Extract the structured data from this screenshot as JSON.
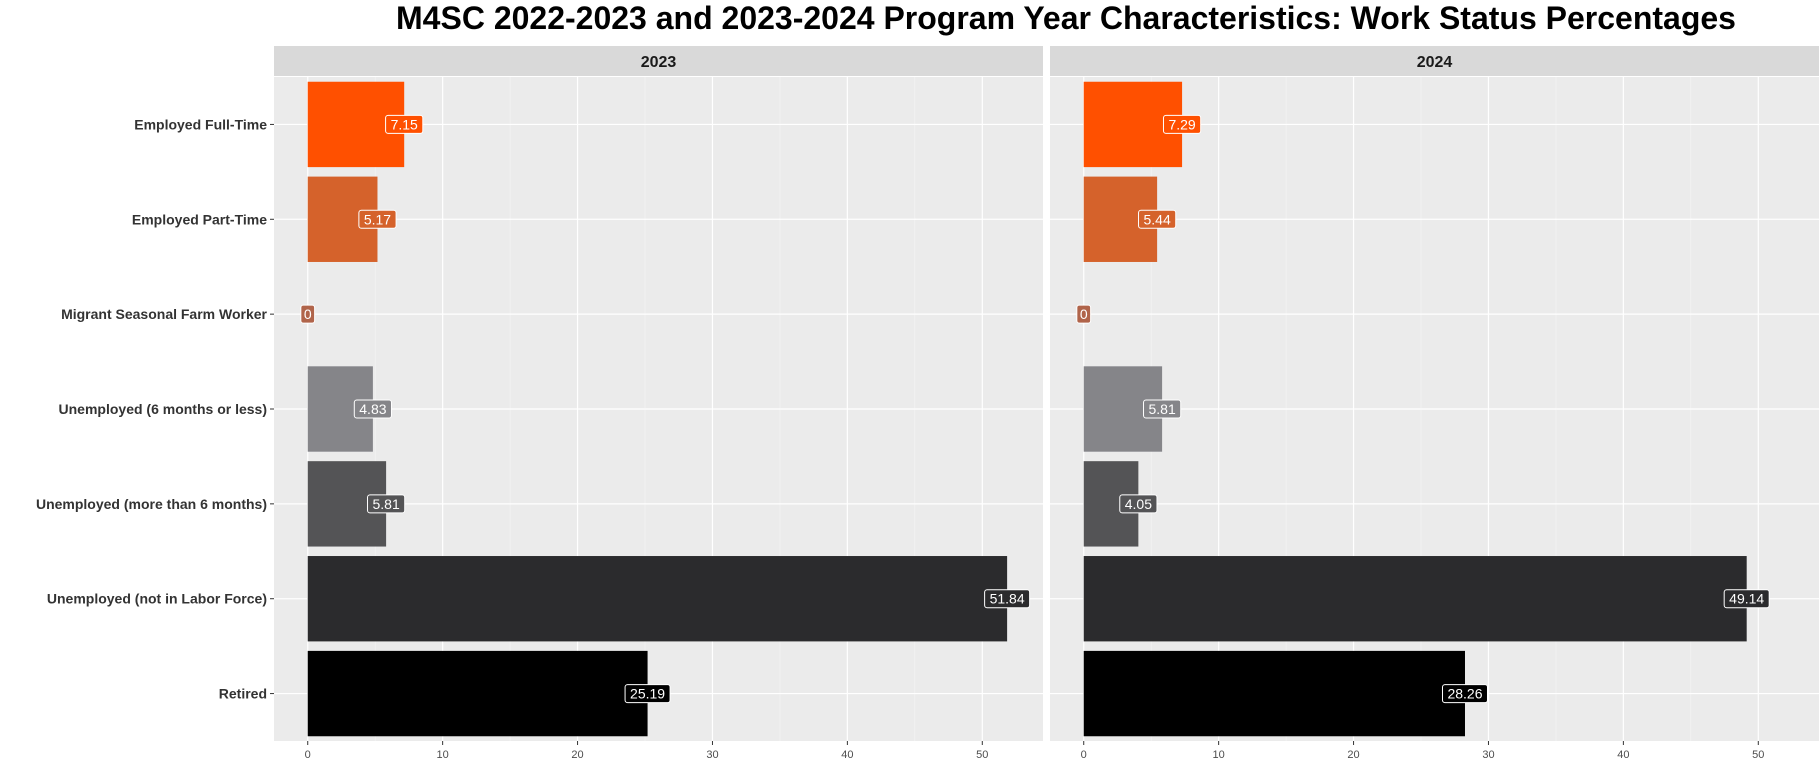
{
  "chart_data": {
    "type": "bar",
    "orientation": "horizontal",
    "title": "M4SC 2022-2023 and 2023-2024 Program Year Characteristics: Work Status Percentages",
    "xlabel": "",
    "ylabel": "",
    "xlim": [
      -2.5,
      54.5
    ],
    "xticks": [
      "0",
      "10",
      "20",
      "30",
      "40",
      "50"
    ],
    "grid": true,
    "legend": "none",
    "categories": [
      "Employed Full-Time",
      "Employed Part-Time",
      "Migrant Seasonal Farm Worker",
      "Unemployed (6 months or less)",
      "Unemployed (more than 6 months)",
      "Unemployed (not in Labor Force)",
      "Retired"
    ],
    "colors": [
      "#ff5000",
      "#d5622b",
      "#b0644a",
      "#858589",
      "#545456",
      "#2b2b2d",
      "#000000"
    ],
    "panels": [
      {
        "name": "2023",
        "values": [
          7.15,
          5.17,
          0,
          4.83,
          5.81,
          51.84,
          25.19
        ],
        "labels": [
          "7.15",
          "5.17",
          "0",
          "4.83",
          "5.81",
          "51.84",
          "25.19"
        ]
      },
      {
        "name": "2024",
        "values": [
          7.29,
          5.44,
          0,
          5.81,
          4.05,
          49.14,
          28.26
        ],
        "labels": [
          "7.29",
          "5.44",
          "0",
          "5.81",
          "4.05",
          "49.14",
          "28.26"
        ]
      }
    ]
  }
}
